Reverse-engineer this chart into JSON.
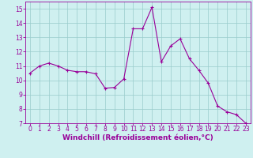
{
  "x": [
    0,
    1,
    2,
    3,
    4,
    5,
    6,
    7,
    8,
    9,
    10,
    11,
    12,
    13,
    14,
    15,
    16,
    17,
    18,
    19,
    20,
    21,
    22,
    23
  ],
  "y": [
    10.5,
    11.0,
    11.2,
    11.0,
    10.7,
    10.6,
    10.6,
    10.45,
    9.45,
    9.5,
    10.1,
    13.6,
    13.6,
    15.1,
    11.3,
    12.4,
    12.9,
    11.5,
    10.7,
    9.8,
    8.2,
    7.8,
    7.6,
    7.0
  ],
  "line_color": "#990099",
  "marker": "+",
  "marker_size": 3,
  "marker_linewidth": 0.8,
  "bg_color": "#cff0f0",
  "grid_color": "#99cccc",
  "xlabel": "Windchill (Refroidissement éolien,°C)",
  "xlim": [
    -0.5,
    23.5
  ],
  "ylim": [
    7,
    15.5
  ],
  "yticks": [
    7,
    8,
    9,
    10,
    11,
    12,
    13,
    14,
    15
  ],
  "xticks": [
    0,
    1,
    2,
    3,
    4,
    5,
    6,
    7,
    8,
    9,
    10,
    11,
    12,
    13,
    14,
    15,
    16,
    17,
    18,
    19,
    20,
    21,
    22,
    23
  ],
  "xlabel_color": "#990099",
  "tick_color": "#990099",
  "axis_color": "#990099",
  "tick_fontsize": 5.5,
  "xlabel_fontsize": 6.5,
  "linewidth": 0.8
}
